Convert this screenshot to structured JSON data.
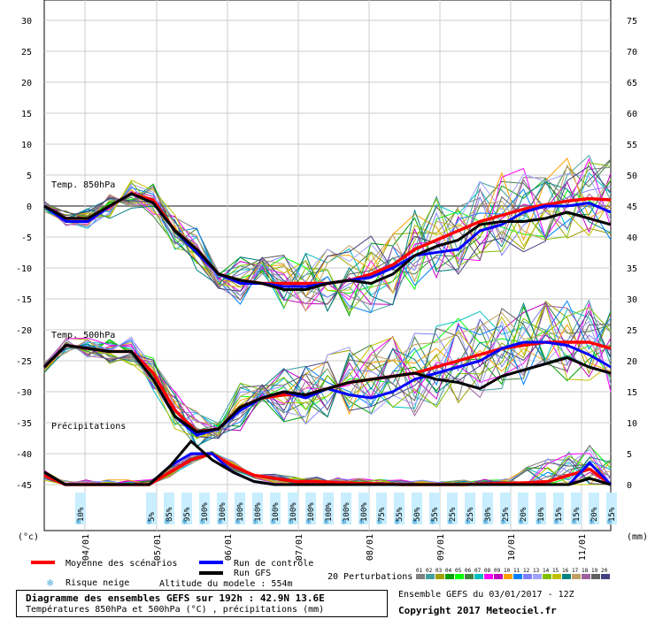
{
  "chart_data": {
    "type": "line",
    "y_left_ticks": [
      "30",
      "25",
      "20",
      "15",
      "10",
      "5",
      "0",
      "-5",
      "-10",
      "-15",
      "-20",
      "-25",
      "-30",
      "-35",
      "-40",
      "-45"
    ],
    "y_right_ticks": [
      "75",
      "70",
      "65",
      "60",
      "55",
      "50",
      "45",
      "40",
      "35",
      "30",
      "25",
      "20",
      "15",
      "10",
      "5",
      "0"
    ],
    "y_left_unit": "(°c)",
    "y_right_unit": "(mm)",
    "x_tick_labels": [
      "04/01",
      "05/01",
      "06/01",
      "07/01",
      "08/01",
      "09/01",
      "10/01",
      "11/01"
    ],
    "panel_labels": {
      "t850": "Temp. 850hPa",
      "t500": "Temp. 500hPa",
      "precip": "Précipitations"
    },
    "snow_risk": [
      "10%",
      "",
      "",
      "",
      "5%",
      "85%",
      "95%",
      "100%",
      "100%",
      "100%",
      "100%",
      "100%",
      "100%",
      "100%",
      "100%",
      "100%",
      "100%",
      "75%",
      "55%",
      "50%",
      "55%",
      "25%",
      "25%",
      "30%",
      "25%",
      "20%",
      "10%",
      "15%",
      "15%",
      "20%",
      "15%",
      ""
    ],
    "series": [
      {
        "name": "Moyenne des scénarios",
        "color": "#ff0000",
        "group": "t850",
        "values": [
          0,
          -2,
          -2,
          0,
          2,
          1,
          -4,
          -7,
          -11,
          -12,
          -12.5,
          -12.5,
          -12.5,
          -12.5,
          -12,
          -11,
          -9.5,
          -7,
          -5.5,
          -4,
          -2.5,
          -1.5,
          -0.5,
          0.2,
          0.8,
          1.2,
          1
        ]
      },
      {
        "name": "Run de contrôle",
        "color": "#0000ff",
        "group": "t850",
        "values": [
          0,
          -2.5,
          -2.5,
          0,
          2,
          0.5,
          -4,
          -7.5,
          -11,
          -12.5,
          -12.5,
          -13,
          -13,
          -12.5,
          -12,
          -11.5,
          -10,
          -8,
          -7.5,
          -7,
          -4,
          -3,
          -1,
          0,
          0,
          0.5,
          -1
        ]
      },
      {
        "name": "Run GFS",
        "color": "#000000",
        "group": "t850",
        "values": [
          0,
          -2,
          -2,
          0,
          2,
          0.5,
          -4,
          -7,
          -11,
          -12,
          -12.5,
          -13.5,
          -13.5,
          -12.5,
          -12,
          -12.5,
          -11,
          -8,
          -6.5,
          -5.5,
          -3,
          -2.5,
          -2.5,
          -2,
          -1,
          -2,
          -3
        ]
      },
      {
        "name": "Moyenne des scénarios",
        "color": "#ff0000",
        "group": "t500",
        "values": [
          -26,
          -22.5,
          -23,
          -23.5,
          -23.5,
          -27,
          -33,
          -36.5,
          -36,
          -32.5,
          -31,
          -30.5,
          -30.5,
          -29.5,
          -28.5,
          -28,
          -27.5,
          -27,
          -26,
          -25,
          -24,
          -23,
          -22.5,
          -22,
          -22,
          -22,
          -23
        ]
      },
      {
        "name": "Run de contrôle",
        "color": "#0000ff",
        "group": "t500",
        "values": [
          -26,
          -22.5,
          -23,
          -23.5,
          -23.5,
          -28,
          -34,
          -37,
          -36,
          -33,
          -31,
          -30,
          -31,
          -29.5,
          -30.5,
          -31,
          -30,
          -28,
          -27,
          -26,
          -25,
          -23,
          -22,
          -22,
          -22.5,
          -24,
          -26
        ]
      },
      {
        "name": "Run GFS",
        "color": "#000000",
        "group": "t500",
        "values": [
          -26,
          -22.5,
          -23,
          -23.5,
          -23.5,
          -28,
          -34,
          -36.5,
          -36,
          -32.5,
          -31,
          -30,
          -30.5,
          -29.5,
          -28.5,
          -28,
          -27.5,
          -27,
          -28,
          -28.5,
          -29.5,
          -27.5,
          -26.5,
          -25.5,
          -24.5,
          -26,
          -27
        ]
      },
      {
        "name": "Moyenne des scénarios",
        "color": "#ff0000",
        "group": "precip",
        "values": [
          1.5,
          0,
          0,
          0,
          0,
          0,
          2,
          4,
          5,
          3,
          1.5,
          1,
          0.5,
          0.5,
          0.3,
          0.2,
          0.1,
          0,
          0,
          0,
          0,
          0.1,
          0.2,
          0.3,
          0.5,
          1.5,
          2.5,
          0
        ]
      },
      {
        "name": "Run de contrôle",
        "color": "#0000ff",
        "group": "precip",
        "values": [
          2,
          0,
          0,
          0,
          0,
          0,
          3,
          5,
          5,
          2,
          0.5,
          0,
          0,
          0,
          0,
          0,
          0,
          0,
          0,
          0,
          0,
          0,
          0,
          0,
          0,
          0,
          3.5,
          0
        ]
      },
      {
        "name": "Run GFS",
        "color": "#000000",
        "group": "precip",
        "values": [
          2,
          0,
          0,
          0,
          0,
          0,
          3,
          7,
          4,
          2,
          0.5,
          0,
          0,
          0,
          0,
          0,
          0,
          0,
          0,
          0,
          0,
          0,
          0,
          0,
          0,
          0,
          1,
          0
        ]
      }
    ],
    "legend": {
      "mean": "Moyenne des scénarios",
      "control": "Run de contrôle",
      "gfs": "Run GFS",
      "snow": "Risque neige",
      "altitude": "Altitude du modele : 554m",
      "perturb": "20 Perturbations",
      "perturb_codes": [
        "01",
        "02",
        "03",
        "04",
        "05",
        "06",
        "07",
        "08",
        "09",
        "10",
        "11",
        "12",
        "13",
        "14",
        "15",
        "16",
        "17",
        "18",
        "19",
        "20"
      ],
      "perturb_colors": [
        "#808080",
        "#40a0a0",
        "#a0a000",
        "#00a000",
        "#00ff00",
        "#408040",
        "#00c0c0",
        "#ff00ff",
        "#c000c0",
        "#ffa000",
        "#0080ff",
        "#8080ff",
        "#a0a0ff",
        "#80c000",
        "#c0c000",
        "#008080",
        "#c0a060",
        "#a060a0",
        "#606060",
        "#404080"
      ]
    },
    "grid": true
  },
  "footer": {
    "title": "Diagramme des ensembles GEFS sur 192h : 42.9N 13.6E",
    "subtitle": "Températures 850hPa et 500hPa (°C) , précipitations (mm)",
    "ensemble": "Ensemble GEFS du 03/01/2017 - 12Z",
    "copyright": "Copyright 2017 Meteociel.fr"
  }
}
